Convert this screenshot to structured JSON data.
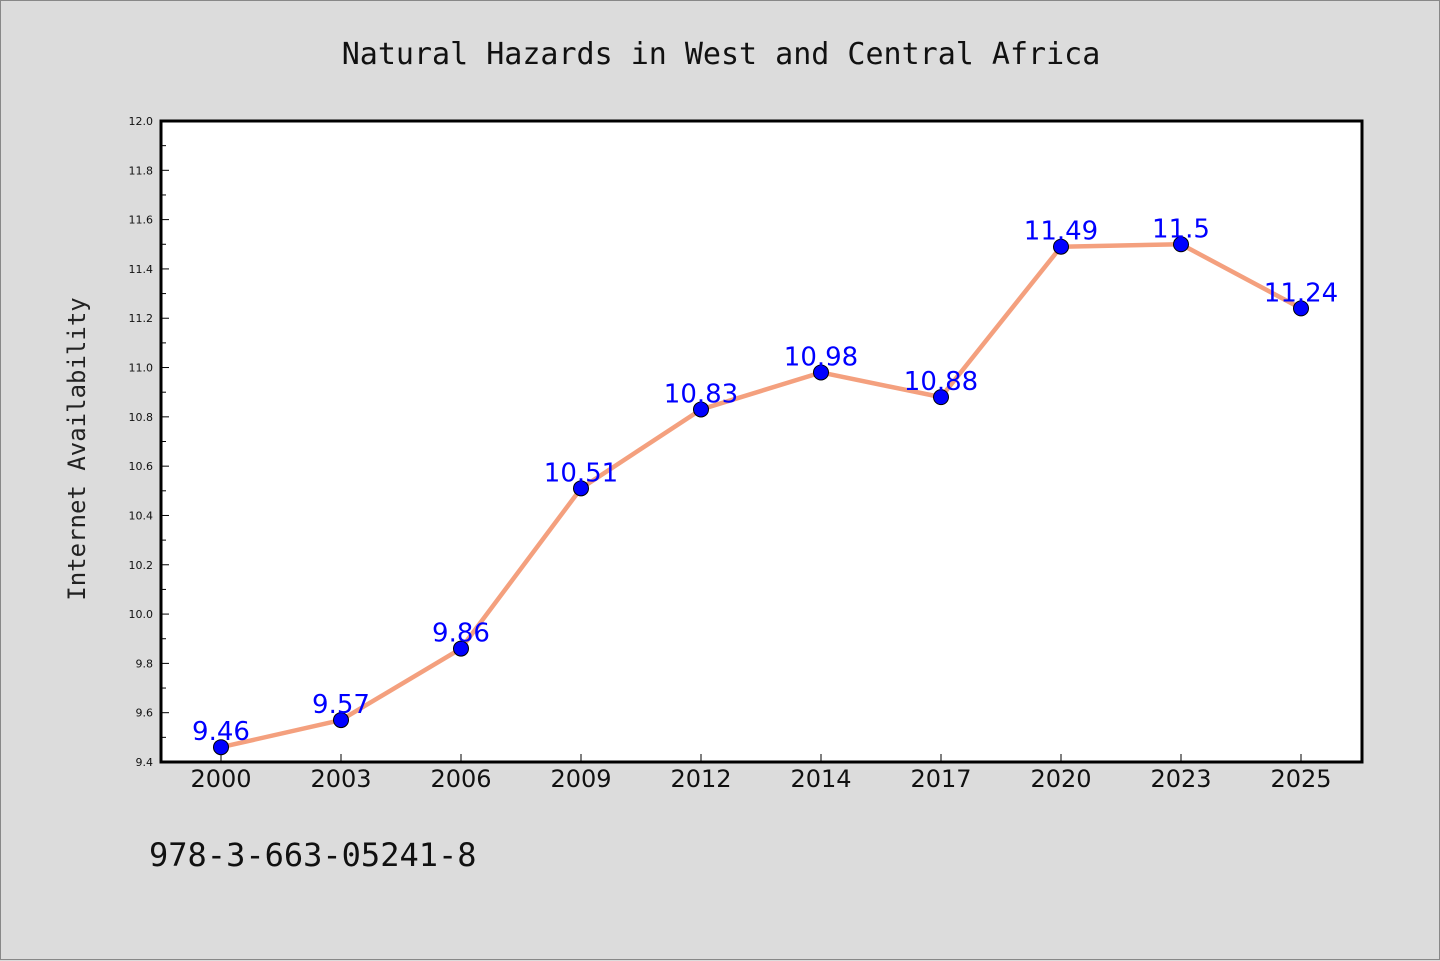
{
  "chart_data": {
    "type": "line",
    "title": "Natural Hazards in West and Central Africa",
    "xlabel": "",
    "ylabel": "Internet Availability",
    "categories": [
      "2000",
      "2003",
      "2006",
      "2009",
      "2012",
      "2014",
      "2017",
      "2020",
      "2023",
      "2025"
    ],
    "series": [
      {
        "values": [
          9.46,
          9.57,
          9.86,
          10.51,
          10.83,
          10.98,
          10.88,
          11.49,
          11.5,
          11.24
        ],
        "labels": [
          "9.46",
          "9.57",
          "9.86",
          "10.51",
          "10.83",
          "10.98",
          "10.88",
          "11.49",
          "11.5",
          "11.24"
        ],
        "color": "#f4a07e",
        "marker_color": "#0000ff"
      }
    ],
    "ylim": [
      9.4,
      12.0
    ],
    "yticks": [
      "9.4",
      "9.6",
      "9.8",
      "10.0",
      "10.2",
      "10.4",
      "10.6",
      "10.8",
      "11.0",
      "11.2",
      "11.4",
      "11.6",
      "11.8",
      "12.0"
    ],
    "grid": false,
    "legend": "none"
  },
  "footer_note": "978-3-663-05241-8"
}
